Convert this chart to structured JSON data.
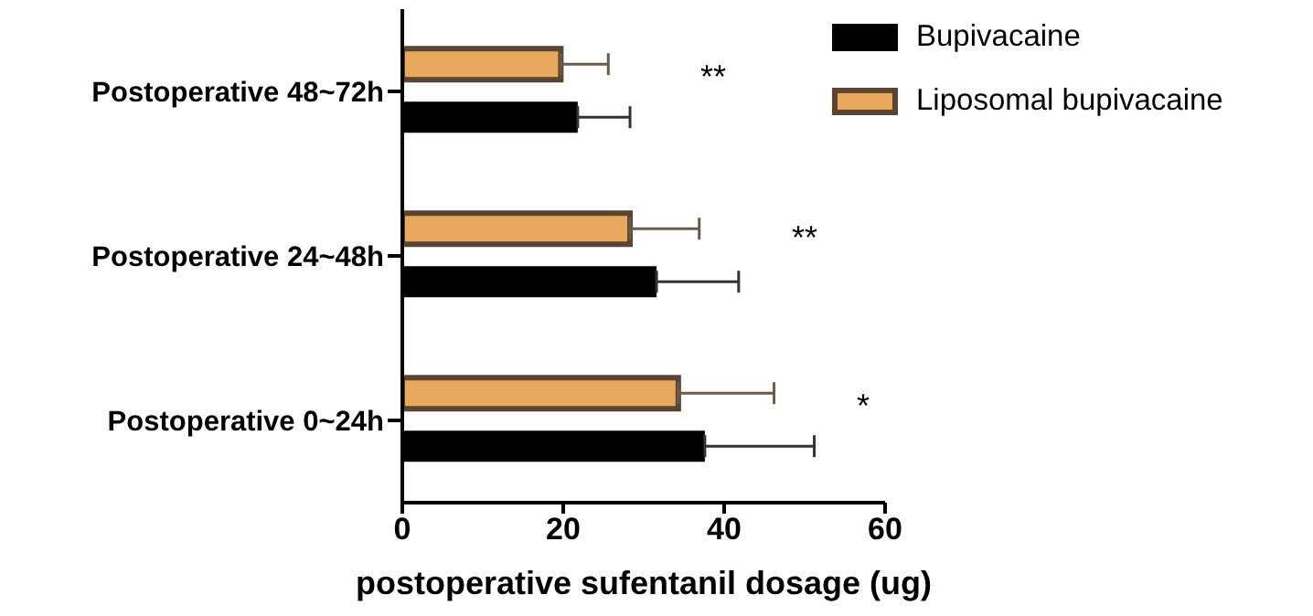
{
  "chart_data": {
    "type": "bar",
    "orientation": "horizontal",
    "xlabel": "postoperative sufentanil dosage (ug)",
    "categories": [
      "Postoperative 48~72h",
      "Postoperative 24~48h",
      "Postoperative 0~24h"
    ],
    "series": [
      {
        "name": "Bupivacaine",
        "color": "#000000",
        "values": [
          21.8,
          31.6,
          37.6
        ],
        "errors": [
          [
            21.8,
            28.3
          ],
          [
            31.6,
            41.8
          ],
          [
            37.6,
            51.2
          ]
        ]
      },
      {
        "name": "Liposomal bupivacaine",
        "color": "#e8a95e",
        "values": [
          19.7,
          28.3,
          34.3
        ],
        "errors": [
          [
            19.7,
            25.6
          ],
          [
            28.3,
            36.9
          ],
          [
            34.3,
            46.2
          ]
        ]
      }
    ],
    "xlim": [
      0,
      60
    ],
    "xticks": [
      0,
      20,
      40,
      60
    ],
    "grid": false,
    "legend": "top right",
    "annotations": [
      "**",
      "**",
      "*"
    ]
  }
}
